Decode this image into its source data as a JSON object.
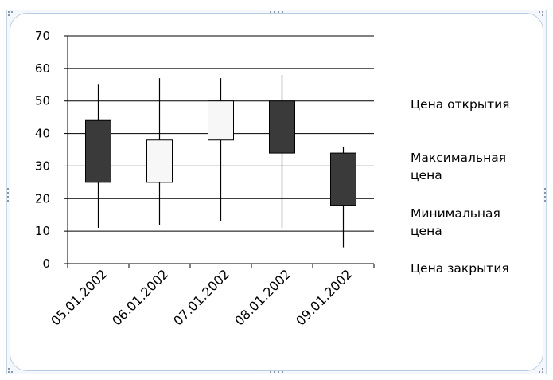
{
  "chart_data": {
    "type": "candlestick",
    "categories": [
      "05.01.2002",
      "06.01.2002",
      "07.01.2002",
      "08.01.2002",
      "09.01.2002"
    ],
    "series": [
      {
        "name": "Цена открытия",
        "values": [
          44,
          25,
          38,
          50,
          34
        ]
      },
      {
        "name": "Максимальная цена",
        "values": [
          55,
          57,
          57,
          58,
          36
        ]
      },
      {
        "name": "Минимальная цена",
        "values": [
          11,
          12,
          13,
          11,
          5
        ]
      },
      {
        "name": "Цена закрытия",
        "values": [
          25,
          38,
          50,
          34,
          18
        ]
      }
    ],
    "ylim": [
      0,
      70
    ],
    "yticks": [
      0,
      10,
      20,
      30,
      40,
      50,
      60,
      70
    ],
    "grid": true,
    "legend_position": "right",
    "colors": {
      "down_fill": "#3a3a3a",
      "up_fill": "#f7f7f7",
      "outline": "#000000",
      "grid": "#000000",
      "frame_border": "#b9cde2"
    }
  }
}
